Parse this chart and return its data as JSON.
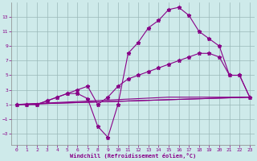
{
  "xlabel": "Windchill (Refroidissement éolien,°C)",
  "background_color": "#ceeaea",
  "grid_color": "#9ab8b8",
  "line_color": "#880088",
  "x_ticks": [
    0,
    1,
    2,
    3,
    4,
    5,
    6,
    7,
    8,
    9,
    10,
    11,
    12,
    13,
    14,
    15,
    16,
    17,
    18,
    19,
    20,
    21,
    22,
    23
  ],
  "y_ticks": [
    -3,
    -1,
    1,
    3,
    5,
    7,
    9,
    11,
    13
  ],
  "xlim": [
    -0.5,
    23.5
  ],
  "ylim": [
    -4.5,
    15.0
  ],
  "series1_x": [
    0,
    1,
    2,
    3,
    4,
    5,
    6,
    7,
    8,
    9,
    10,
    11,
    12,
    13,
    14,
    15,
    16,
    17,
    18,
    19,
    20,
    21,
    22,
    23
  ],
  "series1_y": [
    1,
    1,
    1,
    1.5,
    2.0,
    2.5,
    2.5,
    1.8,
    -2.0,
    -3.5,
    1.0,
    8.0,
    9.5,
    11.5,
    12.5,
    14.0,
    14.3,
    13.2,
    11.0,
    10.0,
    9.0,
    5.0,
    5.0,
    2.0
  ],
  "series2_x": [
    0,
    1,
    2,
    3,
    4,
    5,
    6,
    7,
    8,
    9,
    10,
    11,
    12,
    13,
    14,
    15,
    16,
    17,
    18,
    19,
    20,
    21,
    22,
    23
  ],
  "series2_y": [
    1,
    1,
    1,
    1.5,
    2.0,
    2.5,
    3.0,
    3.5,
    1.0,
    2.0,
    3.5,
    4.5,
    5.0,
    5.5,
    6.0,
    6.5,
    7.0,
    7.5,
    8.0,
    8.0,
    7.5,
    5.0,
    5.0,
    2.0
  ],
  "series3_x": [
    0,
    23
  ],
  "series3_y": [
    1.0,
    2.0
  ],
  "series4_x": [
    0,
    23
  ],
  "series4_y": [
    1.0,
    2.0
  ],
  "series5_x": [
    0,
    15,
    23
  ],
  "series5_y": [
    1.0,
    2.0,
    2.0
  ]
}
